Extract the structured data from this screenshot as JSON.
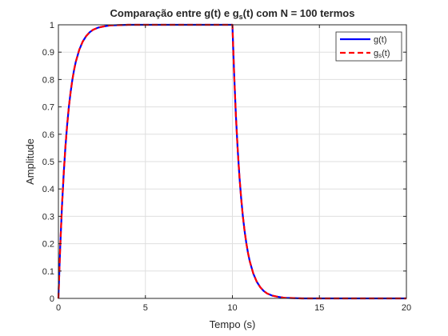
{
  "chart_data": {
    "type": "line",
    "title": {
      "t1": "Comparação  entre  g(t)  e  g",
      "sub": "s",
      "t2": "(t)  com  N  =  100  termos"
    },
    "xlabel": "Tempo (s)",
    "ylabel": "Amplitude",
    "xlim": [
      0,
      20
    ],
    "ylim": [
      0,
      1
    ],
    "xticks": [
      0,
      5,
      10,
      15,
      20
    ],
    "xtick_labels": [
      "0",
      "5",
      "10",
      "15",
      "20"
    ],
    "yticks": [
      0,
      0.1,
      0.2,
      0.3,
      0.4,
      0.5,
      0.6,
      0.7,
      0.8,
      0.9,
      1
    ],
    "ytick_labels": [
      "0",
      "0.1",
      "0.2",
      "0.3",
      "0.4",
      "0.5",
      "0.6",
      "0.7",
      "0.8",
      "0.9",
      "1"
    ],
    "grid": true,
    "legend_position": "top-right",
    "series": [
      {
        "name": "g(t)",
        "color": "#0000ff",
        "style": "solid",
        "x": [
          0,
          0.1,
          0.2,
          0.3,
          0.4,
          0.5,
          0.6,
          0.7,
          0.8,
          0.9,
          1.0,
          1.2,
          1.4,
          1.6,
          1.8,
          2.0,
          2.3,
          2.6,
          3.0,
          3.5,
          4.0,
          5.0,
          6.0,
          8.0,
          9.99,
          10.0,
          10.1,
          10.2,
          10.3,
          10.4,
          10.5,
          10.6,
          10.7,
          10.8,
          10.9,
          11.0,
          11.2,
          11.4,
          11.6,
          11.8,
          12.0,
          12.3,
          12.6,
          13.0,
          13.5,
          14.0,
          16.0,
          18.0,
          20.0
        ],
        "y": [
          0,
          0.181,
          0.33,
          0.451,
          0.551,
          0.632,
          0.699,
          0.753,
          0.798,
          0.835,
          0.865,
          0.909,
          0.939,
          0.959,
          0.973,
          0.982,
          0.99,
          0.994,
          0.998,
          0.999,
          1.0,
          1.0,
          1.0,
          1.0,
          1.0,
          1.0,
          0.819,
          0.67,
          0.549,
          0.449,
          0.368,
          0.301,
          0.247,
          0.202,
          0.165,
          0.135,
          0.091,
          0.061,
          0.041,
          0.027,
          0.018,
          0.01,
          0.006,
          0.002,
          0.001,
          0.0,
          0.0,
          0.0,
          0.0
        ]
      },
      {
        "name": "g_s(t)",
        "legend_main": "g",
        "legend_sub": "s",
        "legend_tail": "(t)",
        "color": "#ff0000",
        "style": "dashed",
        "x": [
          0,
          0.1,
          0.2,
          0.3,
          0.4,
          0.5,
          0.6,
          0.7,
          0.8,
          0.9,
          1.0,
          1.2,
          1.4,
          1.6,
          1.8,
          2.0,
          2.3,
          2.6,
          3.0,
          3.5,
          4.0,
          5.0,
          6.0,
          8.0,
          9.99,
          10.0,
          10.1,
          10.2,
          10.3,
          10.4,
          10.5,
          10.6,
          10.7,
          10.8,
          10.9,
          11.0,
          11.2,
          11.4,
          11.6,
          11.8,
          12.0,
          12.3,
          12.6,
          13.0,
          13.5,
          14.0,
          16.0,
          18.0,
          20.0
        ],
        "y": [
          0,
          0.181,
          0.33,
          0.451,
          0.551,
          0.632,
          0.699,
          0.753,
          0.798,
          0.835,
          0.865,
          0.909,
          0.939,
          0.959,
          0.973,
          0.982,
          0.99,
          0.994,
          0.998,
          0.999,
          1.0,
          1.0,
          1.0,
          1.0,
          1.0,
          1.0,
          0.819,
          0.67,
          0.549,
          0.449,
          0.368,
          0.301,
          0.247,
          0.202,
          0.165,
          0.135,
          0.091,
          0.061,
          0.041,
          0.027,
          0.018,
          0.01,
          0.006,
          0.002,
          0.001,
          0.0,
          0.0,
          0.0,
          0.0
        ]
      }
    ]
  }
}
